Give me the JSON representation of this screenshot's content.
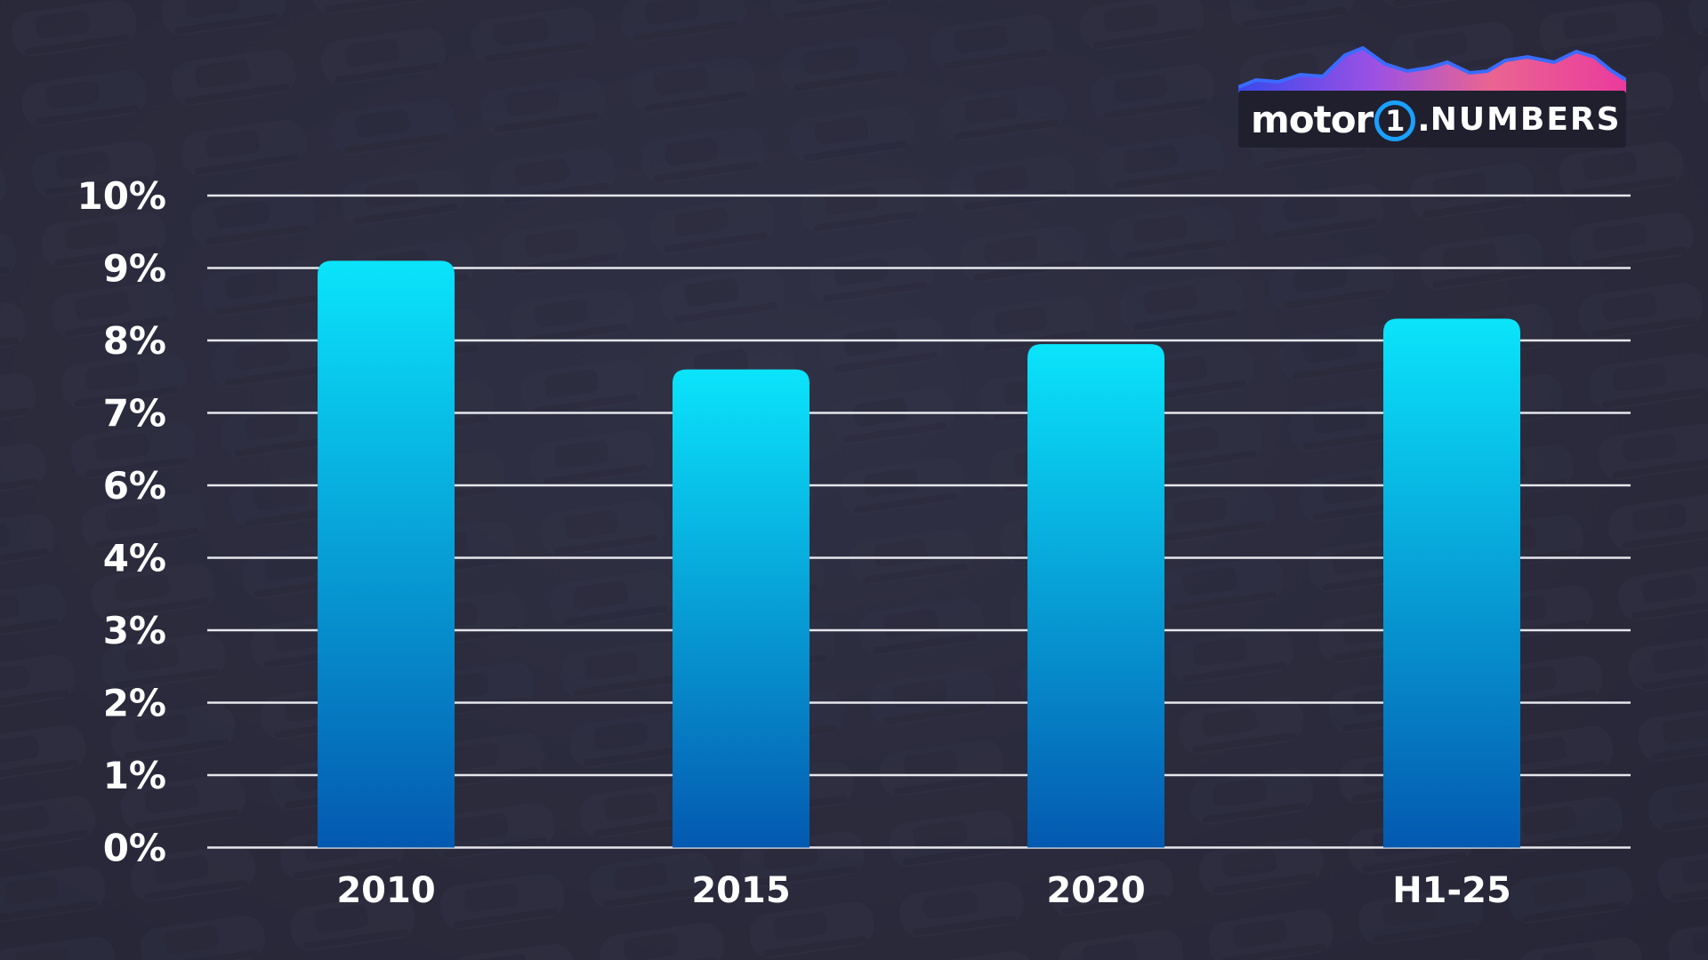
{
  "logo": {
    "brand": "motor",
    "brand_number": "1",
    "brand_dot": ".",
    "suffix": "NUMBERS"
  },
  "colors": {
    "bar_top": "#0ae4fb",
    "bar_bottom": "#0459b0",
    "gridline": "#e6e6ec",
    "text": "#ffffff",
    "background": "#2b2b3d",
    "logo_ring": "#1aa0ff"
  },
  "chart_data": {
    "type": "bar",
    "title": "",
    "xlabel": "",
    "ylabel": "",
    "y_tick_labels": [
      "0%",
      "1%",
      "2%",
      "3%",
      "4%",
      "6%",
      "7%",
      "8%",
      "9%",
      "10%"
    ],
    "categories": [
      "2010",
      "2015",
      "2020",
      "H1-25"
    ],
    "values": [
      9.1,
      7.6,
      7.95,
      8.3
    ],
    "y_unit": "%",
    "grid": true,
    "legend": "none"
  }
}
